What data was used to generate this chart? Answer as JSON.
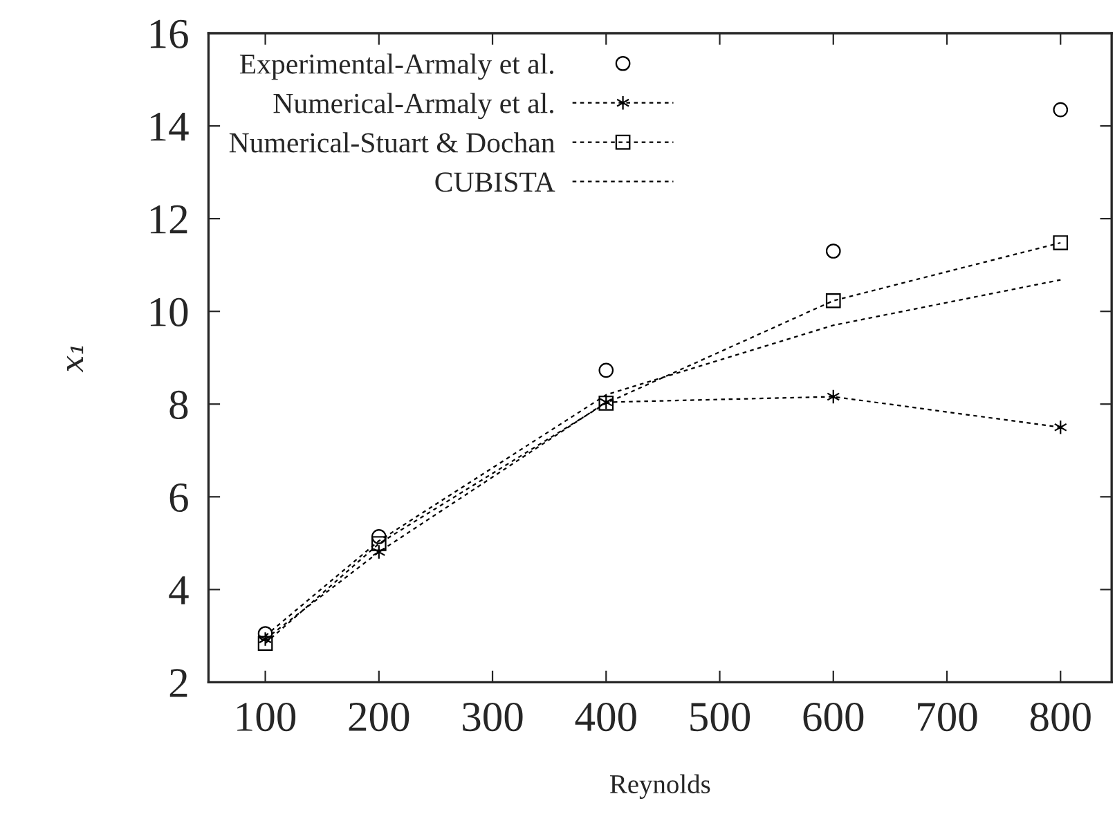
{
  "chart_data": {
    "type": "line",
    "xlabel": "Reynolds",
    "ylabel": "x₁",
    "x": [
      100,
      200,
      400,
      600,
      800
    ],
    "series": [
      {
        "name": "Experimental-Armaly et al.",
        "type": "scatter",
        "color": "#000000",
        "marker": "circle",
        "values": [
          3.05,
          5.14,
          8.73,
          11.3,
          14.35
        ]
      },
      {
        "name": "Numerical-Armaly et al.",
        "color": "#000000",
        "marker": "cross",
        "line_style": "dotted",
        "values": [
          2.93,
          4.81,
          8.04,
          8.16,
          7.5
        ]
      },
      {
        "name": "Numerical-Stuart & Dochan",
        "color": "#000000",
        "marker": "square",
        "line_style": "dotted",
        "values": [
          2.84,
          4.99,
          8.02,
          10.23,
          11.48
        ]
      },
      {
        "name": "CUBISTA",
        "color": "#000000",
        "marker": "none",
        "line_style": "dotted",
        "values": [
          3.0,
          5.05,
          8.2,
          9.7,
          10.68
        ]
      }
    ],
    "xlim": [
      50,
      845
    ],
    "xticks": [
      100,
      200,
      300,
      400,
      500,
      600,
      700,
      800
    ],
    "ylim": [
      2,
      16
    ],
    "yticks": [
      2,
      4,
      6,
      8,
      10,
      12,
      14,
      16
    ],
    "grid": false,
    "legend": "top left"
  }
}
